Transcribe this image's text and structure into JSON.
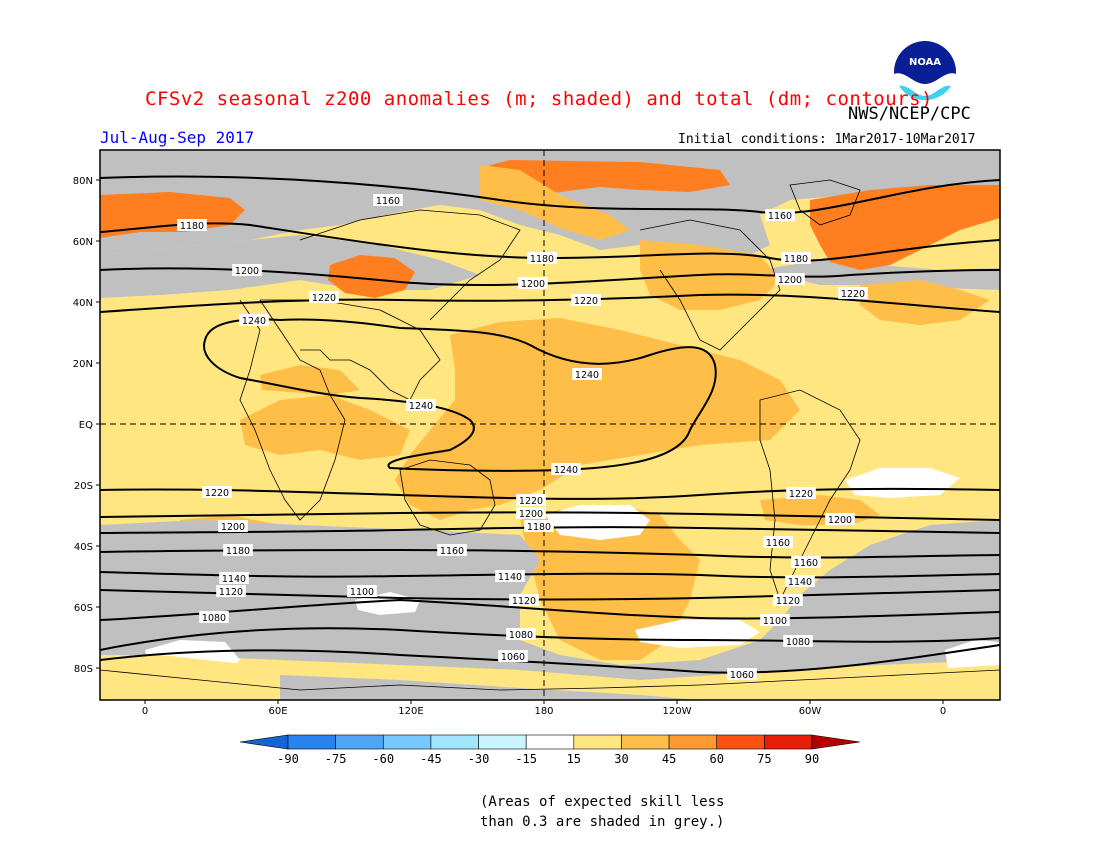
{
  "header": {
    "title": "CFSv2 seasonal z200 anomalies (m; shaded) and total (dm; contours)",
    "agency": "NWS/NCEP/CPC",
    "season": "Jul-Aug-Sep 2017",
    "initial_conditions": "Initial conditions: 1Mar2017-10Mar2017",
    "logo_text": "NOAA"
  },
  "map": {
    "lat_labels": [
      "80N",
      "60N",
      "40N",
      "20N",
      "EQ",
      "20S",
      "40S",
      "60S",
      "80S"
    ],
    "lon_labels": [
      "0",
      "60E",
      "120E",
      "180",
      "120W",
      "60W",
      "0"
    ],
    "shading_colors": {
      "grey_low_skill": "#c0c0c0",
      "15_30": "#ffe680",
      "30_45": "#ffbe48",
      "45_60": "#ff7f20",
      "60_75": "#ff4010",
      "white": "#ffffff"
    },
    "contour_labels": [
      {
        "text": "1160"
      },
      {
        "text": "1160"
      },
      {
        "text": "1180"
      },
      {
        "text": "1180"
      },
      {
        "text": "1200"
      },
      {
        "text": "1200"
      },
      {
        "text": "1200"
      },
      {
        "text": "1220"
      },
      {
        "text": "1220"
      },
      {
        "text": "1220"
      },
      {
        "text": "1240"
      },
      {
        "text": "1240"
      },
      {
        "text": "1240"
      },
      {
        "text": "1240"
      },
      {
        "text": "1220"
      },
      {
        "text": "1220"
      },
      {
        "text": "1220"
      },
      {
        "text": "1200"
      },
      {
        "text": "1200"
      },
      {
        "text": "1200"
      },
      {
        "text": "1180"
      },
      {
        "text": "1180"
      },
      {
        "text": "1160"
      },
      {
        "text": "1160"
      },
      {
        "text": "1160"
      },
      {
        "text": "1140"
      },
      {
        "text": "1140"
      },
      {
        "text": "1140"
      },
      {
        "text": "1120"
      },
      {
        "text": "1120"
      },
      {
        "text": "1120"
      },
      {
        "text": "1100"
      },
      {
        "text": "1100"
      },
      {
        "text": "1080"
      },
      {
        "text": "1080"
      },
      {
        "text": "1080"
      },
      {
        "text": "1060"
      },
      {
        "text": "1060"
      },
      {
        "text": "1180"
      }
    ]
  },
  "colorbar": {
    "labels": [
      "-90",
      "-75",
      "-60",
      "-45",
      "-30",
      "-15",
      "15",
      "30",
      "45",
      "60",
      "75",
      "90"
    ],
    "colors": [
      "#1464d2",
      "#2882f0",
      "#50a5f5",
      "#78c8ff",
      "#a0e6ff",
      "#c8f5ff",
      "#ffffff",
      "#ffe680",
      "#ffbe48",
      "#ff9a30",
      "#ff5014",
      "#e61e0a",
      "#b40000"
    ]
  },
  "footnote": {
    "line1": "(Areas of expected skill less",
    "line2": "than 0.3 are shaded in grey.)"
  }
}
